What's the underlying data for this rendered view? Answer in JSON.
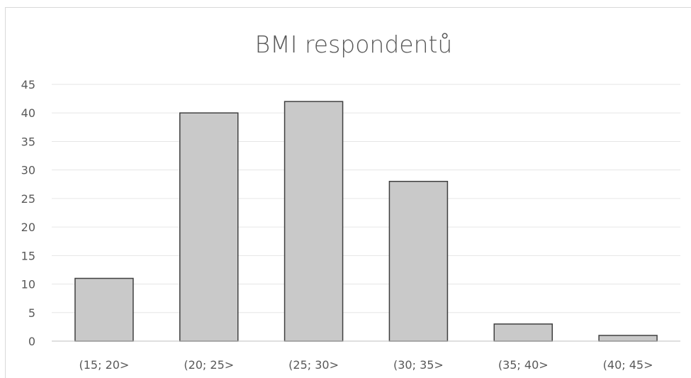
{
  "chart_data": {
    "type": "bar",
    "title": "BMI respondentů",
    "xlabel": "",
    "ylabel": "",
    "categories": [
      "(15; 20>",
      "(20; 25>",
      "(25; 30>",
      "(30; 35>",
      "(35; 40>",
      "(40; 45>"
    ],
    "values": [
      11,
      40,
      42,
      28,
      3,
      1
    ],
    "ylim": [
      0,
      45
    ],
    "yticks": [
      0,
      5,
      10,
      15,
      20,
      25,
      30,
      35,
      40,
      45
    ],
    "grid": true,
    "legend": "none",
    "colors": {
      "bar_fill": "#c9c9c9",
      "bar_stroke": "#404040",
      "grid": "#e6e6e6",
      "axis": "#bfbfbf",
      "text": "#595959"
    }
  }
}
